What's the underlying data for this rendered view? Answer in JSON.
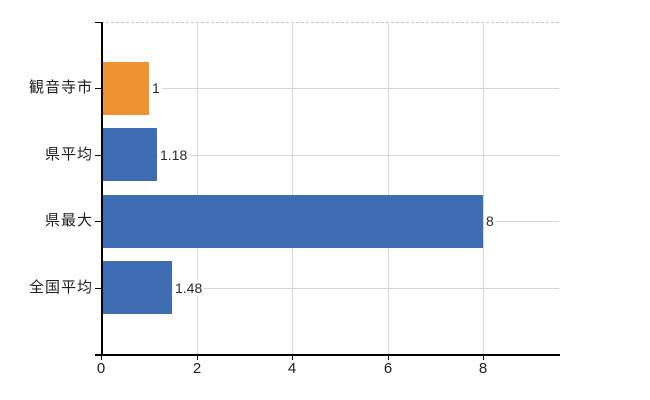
{
  "chart_data": {
    "type": "bar",
    "orientation": "horizontal",
    "title": "",
    "xlabel": "",
    "ylabel": "",
    "categories": [
      "観音寺市",
      "県平均",
      "県最大",
      "全国平均"
    ],
    "values": [
      1,
      1.18,
      8,
      1.48
    ],
    "value_labels": [
      "1",
      "1.18",
      "8",
      "1.48"
    ],
    "bar_colors": [
      "#ee9232",
      "#3e6db3",
      "#3e6db3",
      "#3e6db3"
    ],
    "highlight_category": "観音寺市",
    "x_ticks": [
      0,
      2,
      4,
      6,
      8
    ],
    "xlim": [
      0,
      9.6
    ],
    "grid": true,
    "legend": false,
    "gridline_style": "solid vertical at ticks, solid horizontal at row centers, dashed top border"
  },
  "colors": {
    "bar_highlight": "#ee9232",
    "bar_default": "#3e6db3",
    "gridline": "#d7d7d7",
    "plot_top_border": "#c8c8c8",
    "axis": "#000000",
    "text": "#1f1f1f",
    "background": "#ffffff"
  }
}
